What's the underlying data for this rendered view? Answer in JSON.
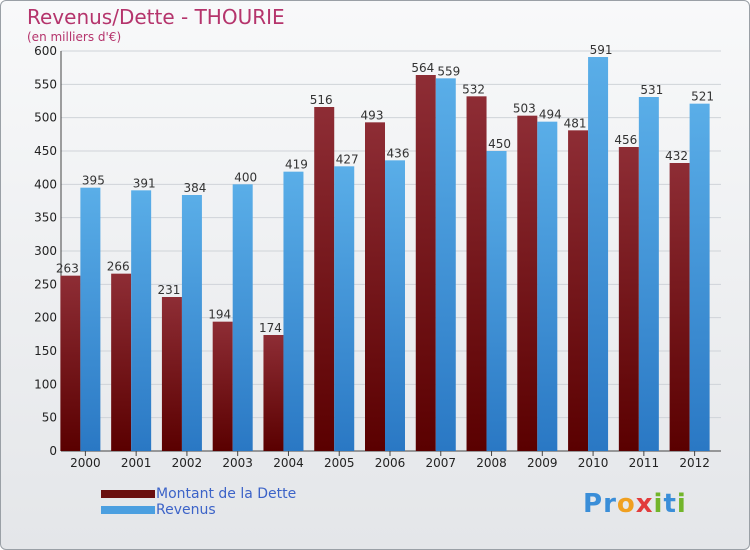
{
  "title": "Revenus/Dette - THOURIE",
  "subtitle": "(en milliers d'€)",
  "logo": {
    "text": "Proxiti",
    "letters": [
      "P",
      "r",
      "o",
      "x",
      "i",
      "t",
      "i"
    ],
    "colors": [
      "#3a8ed8",
      "#3a8ed8",
      "#f0a020",
      "#e23c3c",
      "#72b52a",
      "#3a8ed8",
      "#72b52a"
    ]
  },
  "chart_data": {
    "type": "bar",
    "categories": [
      "2000",
      "2001",
      "2002",
      "2003",
      "2004",
      "2005",
      "2006",
      "2007",
      "2008",
      "2009",
      "2010",
      "2011",
      "2012"
    ],
    "series": [
      {
        "name": "Montant de la Dette",
        "values": [
          263,
          266,
          231,
          194,
          174,
          516,
          493,
          564,
          532,
          503,
          481,
          456,
          432
        ],
        "color": "#7a1c1c"
      },
      {
        "name": "Revenus",
        "values": [
          395,
          391,
          384,
          400,
          419,
          427,
          436,
          559,
          450,
          494,
          591,
          531,
          521
        ],
        "color": "#4b9fe0"
      }
    ],
    "ylim": [
      0,
      600
    ],
    "yticks": [
      0,
      50,
      100,
      150,
      200,
      250,
      300,
      350,
      400,
      450,
      500,
      550,
      600
    ],
    "grid": true,
    "legend": "bottom-left"
  }
}
